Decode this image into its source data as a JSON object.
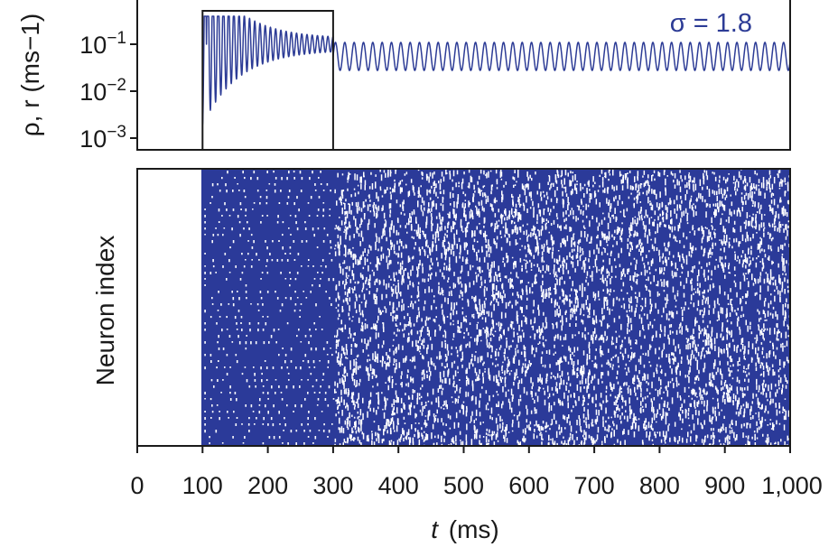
{
  "chart_data": [
    {
      "type": "line",
      "panel": "top",
      "ylabel": "ρ, r (ms−1)",
      "yscale": "log",
      "ylim": [
        0.0006,
        1.0
      ],
      "xlim": [
        0,
        1000
      ],
      "yticks": [
        {
          "value": 0.1,
          "base": "10",
          "exp": "−1"
        },
        {
          "value": 0.01,
          "base": "10",
          "exp": "−2"
        },
        {
          "value": 0.001,
          "base": "10",
          "exp": "−3"
        }
      ],
      "annotation": "σ = 1.8",
      "highlight_box": {
        "x": [
          100,
          300
        ]
      },
      "series": [
        {
          "segments": [
            {
              "t_start": 100,
              "t_end": 300,
              "kind": "damped-oscillation",
              "start_amplitude_decades": 1.6,
              "settled_value": 0.1,
              "period_ms": 8
            },
            {
              "t_start": 300,
              "t_end": 1000,
              "kind": "sustained-oscillation",
              "center_value": 0.055,
              "amplitude_decades": 0.3,
              "period_ms": 14.3
            }
          ]
        }
      ]
    },
    {
      "type": "raster",
      "panel": "bottom",
      "ylabel": "Neuron index",
      "xlabel_var": "t",
      "xlabel_unit": "(ms)",
      "xlim": [
        0,
        1000
      ],
      "xticks": [
        0,
        100,
        200,
        300,
        400,
        500,
        600,
        700,
        800,
        900,
        1000
      ],
      "xtick_labels": [
        "0",
        "100",
        "200",
        "300",
        "400",
        "500",
        "600",
        "700",
        "800",
        "900",
        "1,000"
      ],
      "activity_start_ms": 100,
      "phase_boundary_ms": 300
    }
  ],
  "colors": {
    "series": "#2d3c96",
    "raster_fill": "#2b3a99",
    "annotation": "#2d3c96",
    "frame": "#1a1a1a"
  }
}
